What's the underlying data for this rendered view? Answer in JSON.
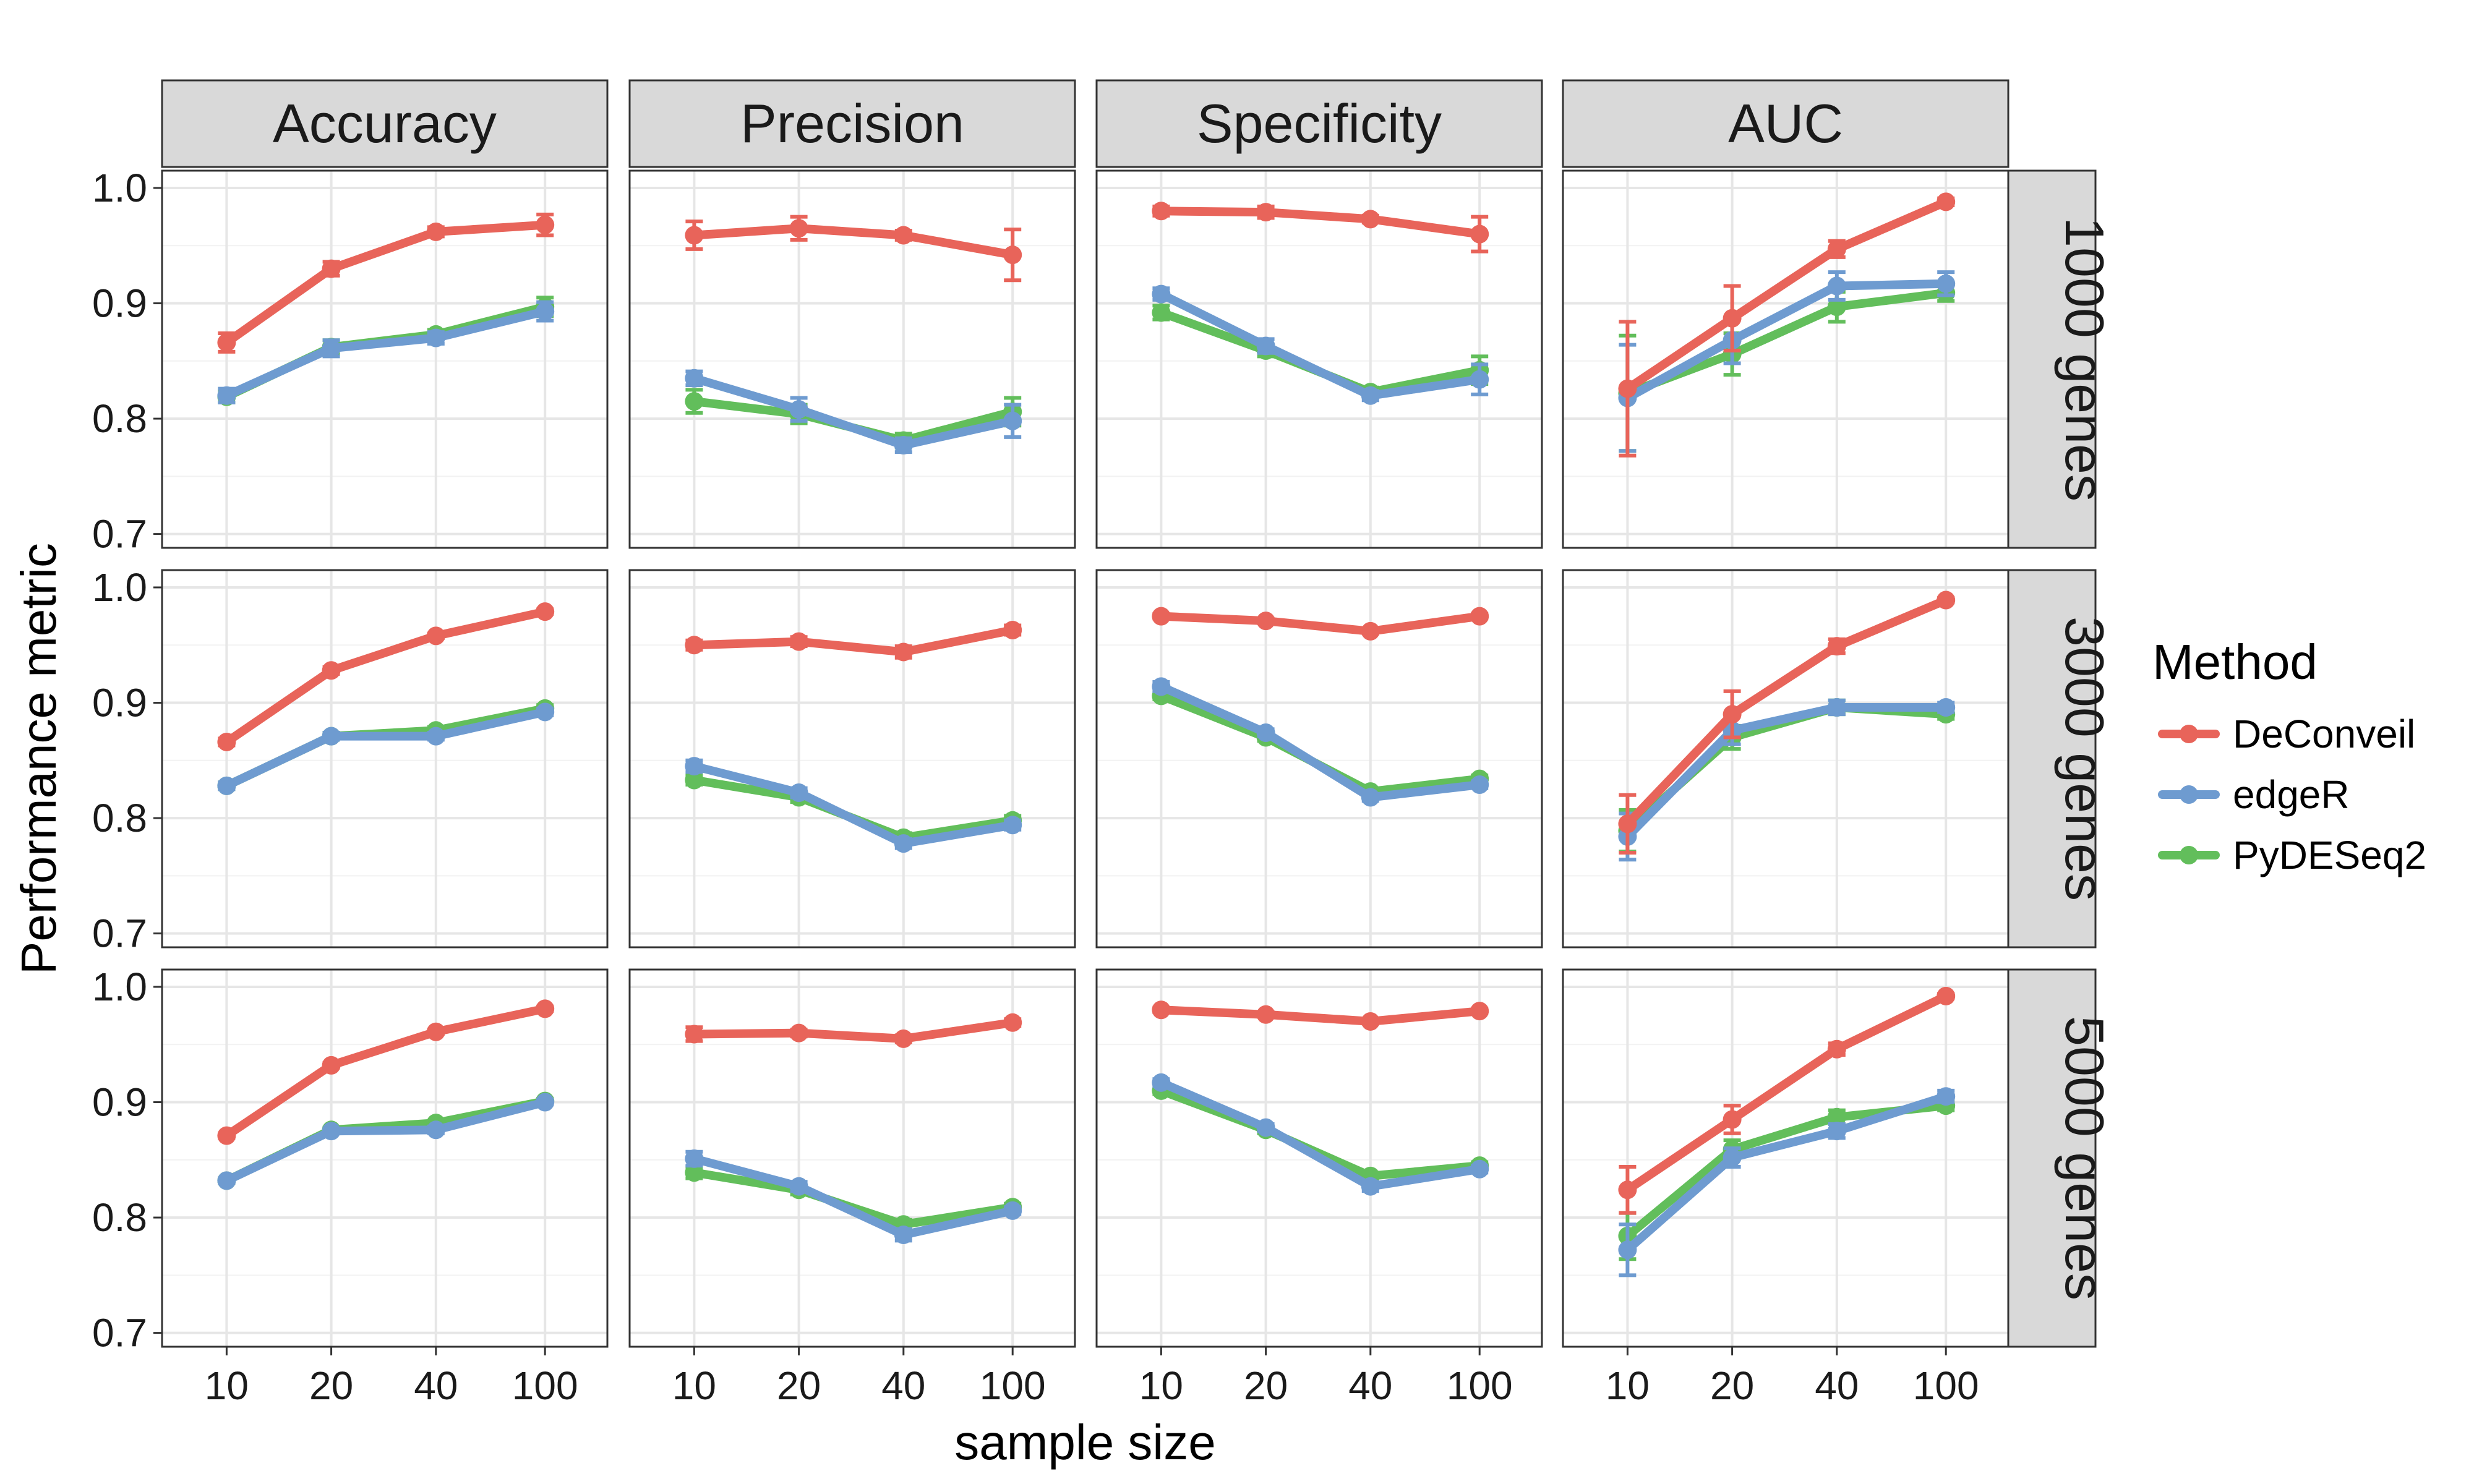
{
  "chart_data": {
    "type": "line",
    "layout": "facet-grid",
    "xlabel": "sample size",
    "ylabel": "Performance metric",
    "x": [
      "10",
      "20",
      "40",
      "100"
    ],
    "y_ticks": [
      "0.7",
      "0.8",
      "0.9",
      "1.0"
    ],
    "ylim": [
      0.688,
      1.015
    ],
    "grid": true,
    "legend": {
      "title": "Method",
      "placement": "right",
      "entries": [
        "DeConveil",
        "edgeR",
        "PyDESeq2"
      ]
    },
    "colors": {
      "DeConveil": "#E8645A",
      "edgeR": "#6E9BD0",
      "PyDESeq2": "#62BE5B"
    },
    "col_facets": [
      "Accuracy",
      "Precision",
      "Specificity",
      "AUC"
    ],
    "row_facets": [
      "1000 genes",
      "3000 genes",
      "5000 genes"
    ],
    "panels": [
      {
        "row": "1000 genes",
        "col": "Accuracy",
        "series": [
          {
            "name": "DeConveil",
            "values": [
              0.866,
              0.93,
              0.962,
              0.968
            ],
            "err": [
              0.008,
              0.006,
              0.004,
              0.009
            ]
          },
          {
            "name": "PyDESeq2",
            "values": [
              0.819,
              0.862,
              0.873,
              0.897
            ],
            "err": [
              0.005,
              0.006,
              0.004,
              0.008
            ]
          },
          {
            "name": "edgeR",
            "values": [
              0.82,
              0.861,
              0.87,
              0.893
            ],
            "err": [
              0.006,
              0.007,
              0.005,
              0.008
            ]
          }
        ]
      },
      {
        "row": "1000 genes",
        "col": "Precision",
        "series": [
          {
            "name": "DeConveil",
            "values": [
              0.959,
              0.965,
              0.959,
              0.942
            ],
            "err": [
              0.012,
              0.01,
              0.004,
              0.022
            ]
          },
          {
            "name": "PyDESeq2",
            "values": [
              0.815,
              0.804,
              0.781,
              0.806
            ],
            "err": [
              0.01,
              0.008,
              0.006,
              0.012
            ]
          },
          {
            "name": "edgeR",
            "values": [
              0.835,
              0.808,
              0.777,
              0.798
            ],
            "err": [
              0.006,
              0.01,
              0.006,
              0.014
            ]
          }
        ]
      },
      {
        "row": "1000 genes",
        "col": "Specificity",
        "series": [
          {
            "name": "DeConveil",
            "values": [
              0.98,
              0.979,
              0.973,
              0.96
            ],
            "err": [
              0.004,
              0.005,
              0.003,
              0.015
            ]
          },
          {
            "name": "PyDESeq2",
            "values": [
              0.892,
              0.859,
              0.823,
              0.842
            ],
            "err": [
              0.006,
              0.005,
              0.004,
              0.012
            ]
          },
          {
            "name": "edgeR",
            "values": [
              0.908,
              0.863,
              0.82,
              0.834
            ],
            "err": [
              0.005,
              0.006,
              0.004,
              0.013
            ]
          }
        ]
      },
      {
        "row": "1000 genes",
        "col": "AUC",
        "series": [
          {
            "name": "DeConveil",
            "values": [
              0.826,
              0.887,
              0.947,
              0.988
            ],
            "err": [
              0.058,
              0.028,
              0.007,
              0.003
            ]
          },
          {
            "name": "PyDESeq2",
            "values": [
              0.822,
              0.856,
              0.897,
              0.909
            ],
            "err": [
              0.05,
              0.018,
              0.013,
              0.007
            ]
          },
          {
            "name": "edgeR",
            "values": [
              0.818,
              0.868,
              0.915,
              0.917
            ],
            "err": [
              0.046,
              0.02,
              0.012,
              0.01
            ]
          }
        ]
      },
      {
        "row": "3000 genes",
        "col": "Accuracy",
        "series": [
          {
            "name": "DeConveil",
            "values": [
              0.866,
              0.928,
              0.958,
              0.979
            ],
            "err": [
              0.003,
              0.003,
              0.002,
              0.002
            ]
          },
          {
            "name": "PyDESeq2",
            "values": [
              0.828,
              0.871,
              0.876,
              0.895
            ],
            "err": [
              0.003,
              0.003,
              0.003,
              0.003
            ]
          },
          {
            "name": "edgeR",
            "values": [
              0.828,
              0.871,
              0.871,
              0.892
            ],
            "err": [
              0.003,
              0.003,
              0.003,
              0.003
            ]
          }
        ]
      },
      {
        "row": "3000 genes",
        "col": "Precision",
        "series": [
          {
            "name": "DeConveil",
            "values": [
              0.95,
              0.953,
              0.944,
              0.963
            ],
            "err": [
              0.004,
              0.004,
              0.005,
              0.004
            ]
          },
          {
            "name": "PyDESeq2",
            "values": [
              0.833,
              0.818,
              0.783,
              0.798
            ],
            "err": [
              0.004,
              0.004,
              0.004,
              0.004
            ]
          },
          {
            "name": "edgeR",
            "values": [
              0.845,
              0.822,
              0.778,
              0.794
            ],
            "err": [
              0.005,
              0.004,
              0.004,
              0.004
            ]
          }
        ]
      },
      {
        "row": "3000 genes",
        "col": "Specificity",
        "series": [
          {
            "name": "DeConveil",
            "values": [
              0.975,
              0.971,
              0.962,
              0.975
            ],
            "err": [
              0.002,
              0.002,
              0.002,
              0.002
            ]
          },
          {
            "name": "PyDESeq2",
            "values": [
              0.906,
              0.87,
              0.823,
              0.834
            ],
            "err": [
              0.003,
              0.003,
              0.003,
              0.003
            ]
          },
          {
            "name": "edgeR",
            "values": [
              0.914,
              0.874,
              0.818,
              0.829
            ],
            "err": [
              0.004,
              0.003,
              0.003,
              0.003
            ]
          }
        ]
      },
      {
        "row": "3000 genes",
        "col": "AUC",
        "series": [
          {
            "name": "DeConveil",
            "values": [
              0.795,
              0.89,
              0.949,
              0.989
            ],
            "err": [
              0.025,
              0.02,
              0.006,
              0.002
            ]
          },
          {
            "name": "PyDESeq2",
            "values": [
              0.789,
              0.87,
              0.896,
              0.89
            ],
            "err": [
              0.018,
              0.01,
              0.006,
              0.004
            ]
          },
          {
            "name": "edgeR",
            "values": [
              0.784,
              0.876,
              0.896,
              0.896
            ],
            "err": [
              0.02,
              0.012,
              0.006,
              0.004
            ]
          }
        ]
      },
      {
        "row": "5000 genes",
        "col": "Accuracy",
        "series": [
          {
            "name": "DeConveil",
            "values": [
              0.871,
              0.932,
              0.961,
              0.981
            ],
            "err": [
              0.002,
              0.002,
              0.002,
              0.002
            ]
          },
          {
            "name": "PyDESeq2",
            "values": [
              0.832,
              0.876,
              0.882,
              0.901
            ],
            "err": [
              0.002,
              0.002,
              0.002,
              0.002
            ]
          },
          {
            "name": "edgeR",
            "values": [
              0.832,
              0.875,
              0.876,
              0.9
            ],
            "err": [
              0.002,
              0.002,
              0.003,
              0.002
            ]
          }
        ]
      },
      {
        "row": "5000 genes",
        "col": "Precision",
        "series": [
          {
            "name": "DeConveil",
            "values": [
              0.959,
              0.96,
              0.955,
              0.969
            ],
            "err": [
              0.006,
              0.003,
              0.003,
              0.003
            ]
          },
          {
            "name": "PyDESeq2",
            "values": [
              0.839,
              0.824,
              0.794,
              0.809
            ],
            "err": [
              0.005,
              0.004,
              0.004,
              0.003
            ]
          },
          {
            "name": "edgeR",
            "values": [
              0.851,
              0.827,
              0.785,
              0.806
            ],
            "err": [
              0.006,
              0.004,
              0.005,
              0.003
            ]
          }
        ]
      },
      {
        "row": "5000 genes",
        "col": "Specificity",
        "series": [
          {
            "name": "DeConveil",
            "values": [
              0.98,
              0.976,
              0.97,
              0.979
            ],
            "err": [
              0.002,
              0.002,
              0.002,
              0.002
            ]
          },
          {
            "name": "PyDESeq2",
            "values": [
              0.91,
              0.876,
              0.836,
              0.845
            ],
            "err": [
              0.003,
              0.003,
              0.003,
              0.003
            ]
          },
          {
            "name": "edgeR",
            "values": [
              0.917,
              0.878,
              0.827,
              0.842
            ],
            "err": [
              0.003,
              0.003,
              0.004,
              0.003
            ]
          }
        ]
      },
      {
        "row": "5000 genes",
        "col": "AUC",
        "series": [
          {
            "name": "DeConveil",
            "values": [
              0.824,
              0.885,
              0.946,
              0.992
            ],
            "err": [
              0.02,
              0.012,
              0.005,
              0.002
            ]
          },
          {
            "name": "PyDESeq2",
            "values": [
              0.784,
              0.859,
              0.887,
              0.897
            ],
            "err": [
              0.02,
              0.008,
              0.006,
              0.004
            ]
          },
          {
            "name": "edgeR",
            "values": [
              0.772,
              0.852,
              0.875,
              0.905
            ],
            "err": [
              0.022,
              0.008,
              0.006,
              0.005
            ]
          }
        ]
      }
    ]
  }
}
